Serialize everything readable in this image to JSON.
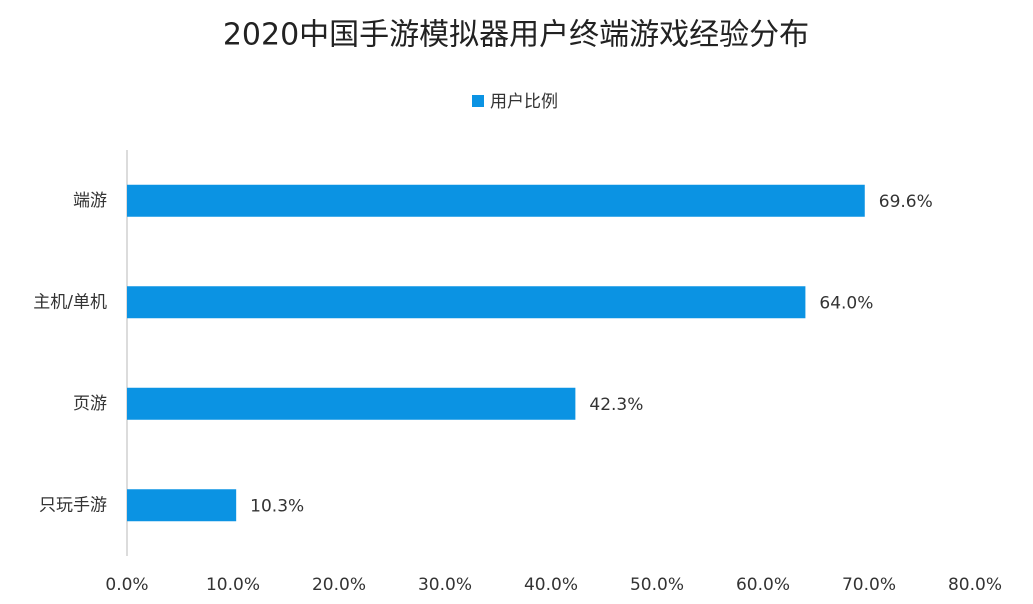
{
  "chart_data": {
    "type": "bar",
    "orientation": "horizontal",
    "title": "2020中国手游模拟器用户终端游戏经验分布",
    "categories": [
      "端游",
      "主机/单机",
      "页游",
      "只玩手游"
    ],
    "series": [
      {
        "name": "用户比例",
        "color": "#0b93e3",
        "values": [
          69.6,
          64.0,
          42.3,
          10.3
        ],
        "value_labels": [
          "69.6%",
          "64.0%",
          "42.3%",
          "10.3%"
        ]
      }
    ],
    "xlim": [
      0,
      80
    ],
    "xticks": [
      {
        "value": 0,
        "label": "0.0%"
      },
      {
        "value": 10,
        "label": "10.0%"
      },
      {
        "value": 20,
        "label": "20.0%"
      },
      {
        "value": 30,
        "label": "30.0%"
      },
      {
        "value": 40,
        "label": "40.0%"
      },
      {
        "value": 50,
        "label": "50.0%"
      },
      {
        "value": 60,
        "label": "60.0%"
      },
      {
        "value": 70,
        "label": "70.0%"
      },
      {
        "value": 80,
        "label": "80.0%"
      }
    ],
    "grid": false,
    "legend": "top"
  }
}
